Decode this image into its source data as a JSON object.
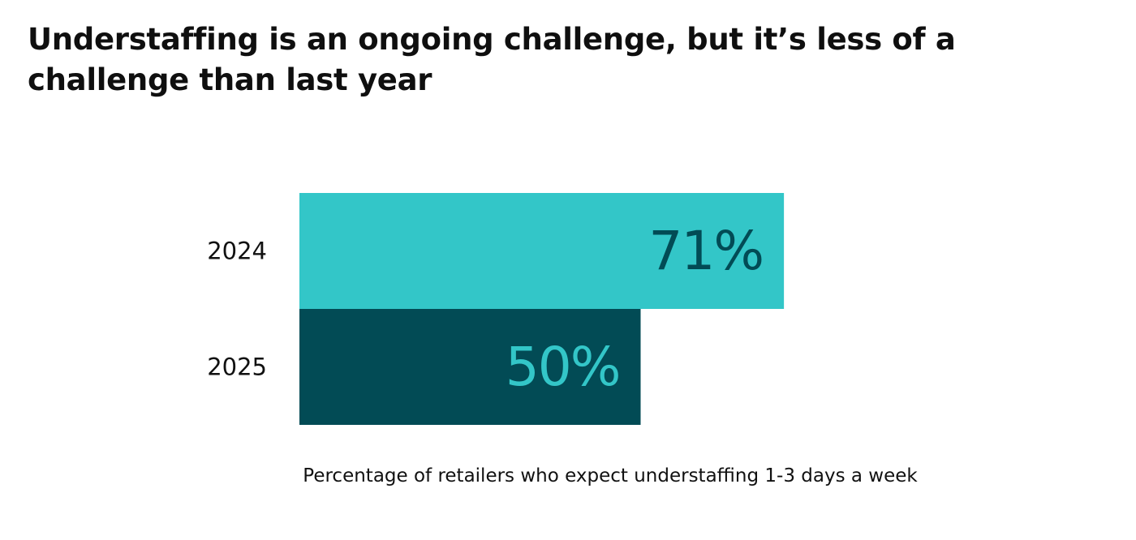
{
  "chart_data": {
    "type": "bar",
    "orientation": "horizontal",
    "title": "Understaffing is an ongoing challenge, but it’s less of a challenge than last year",
    "caption": "Percentage of retailers who expect understaffing 1-3 days a week",
    "categories": [
      "2024",
      "2025"
    ],
    "values": [
      71,
      50
    ],
    "value_labels": [
      "71%",
      "50%"
    ],
    "unit": "%",
    "xlim": [
      0,
      100
    ],
    "bar_colors": [
      "#33c6c8",
      "#024b55"
    ],
    "label_colors": [
      "#024b55",
      "#33c6c8"
    ],
    "grid": false,
    "legend": "none"
  }
}
